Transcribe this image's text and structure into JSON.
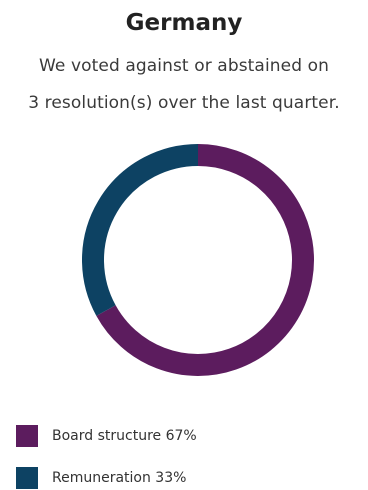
{
  "chart_data": {
    "type": "pie",
    "title": "Germany",
    "subtitle_line1": "We voted against or abstained on",
    "subtitle_line2": "3 resolution(s) over the last quarter.",
    "series": [
      {
        "name": "Board structure",
        "value": 67,
        "label": "Board structure 67%",
        "color": "#5c1c5e"
      },
      {
        "name": "Remuneration",
        "value": 33,
        "label": "Remuneration 33%",
        "color": "#0d4263"
      }
    ],
    "legend_position": "bottom-left"
  }
}
